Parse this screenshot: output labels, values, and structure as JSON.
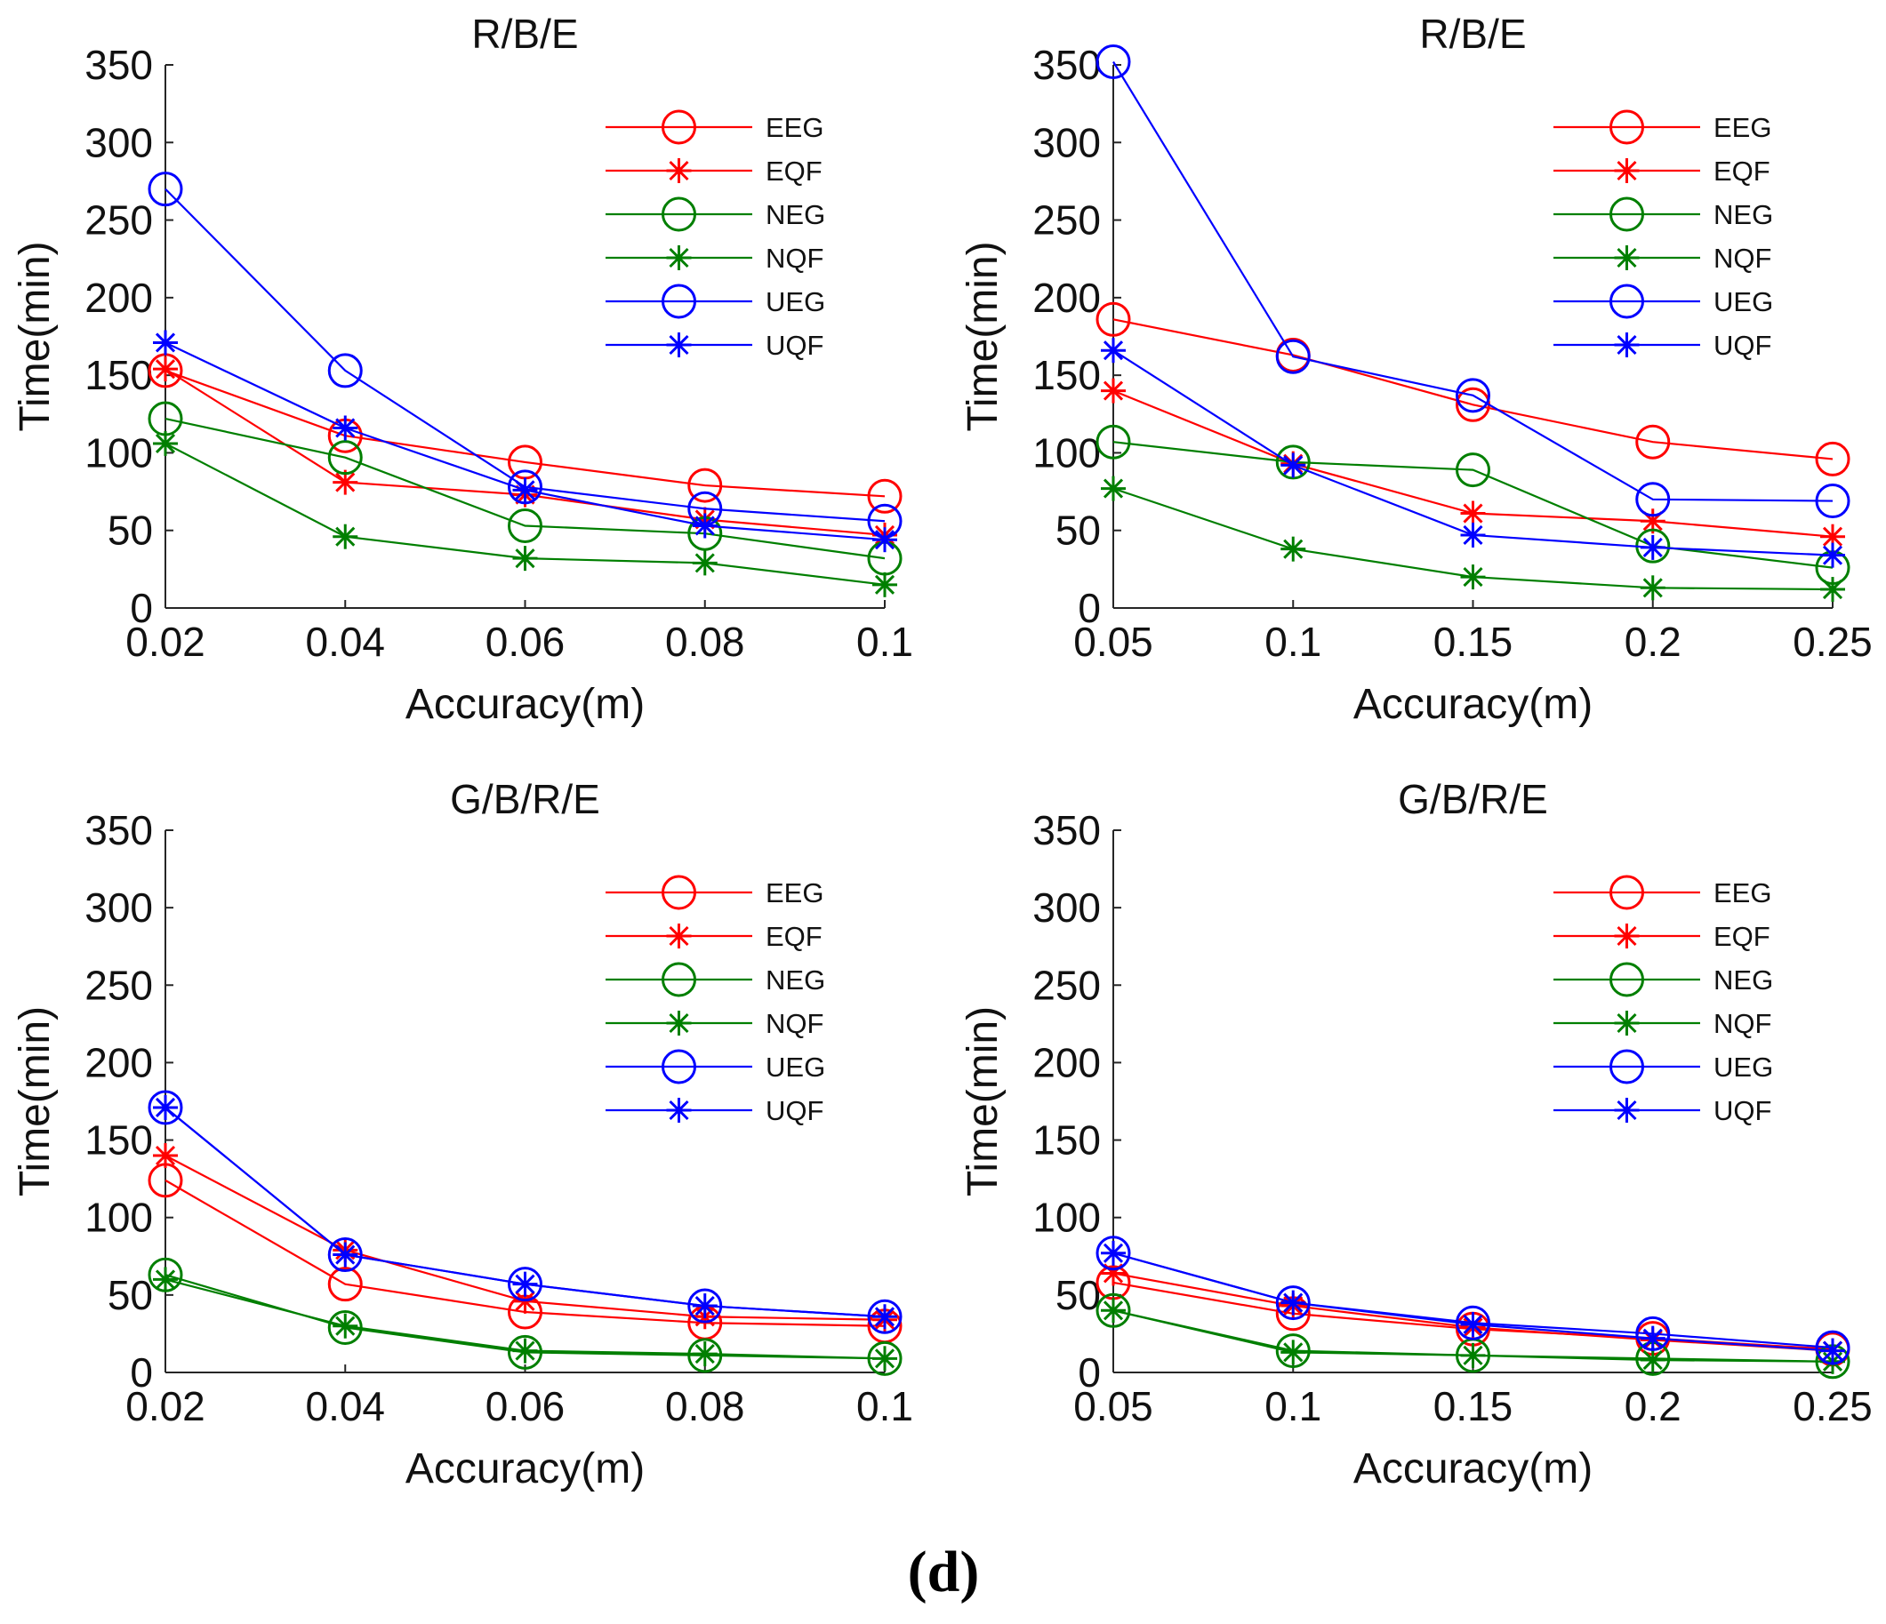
{
  "figure_caption": "(d)",
  "colors": {
    "EEG": "#ff0000",
    "EQF": "#ff0000",
    "NEG": "#007f00",
    "NQF": "#007f00",
    "UEG": "#0000ff",
    "UQF": "#0000ff"
  },
  "chart_data": [
    {
      "type": "line",
      "title": "R/B/E",
      "xlabel": "Accuracy(m)",
      "ylabel": "Time(min)",
      "x": [
        0.02,
        0.04,
        0.06,
        0.08,
        0.1
      ],
      "x_tick_labels": [
        "0.02",
        "0.04",
        "0.06",
        "0.08",
        "0.1"
      ],
      "xlim": [
        0.02,
        0.1
      ],
      "ylim": [
        0,
        350
      ],
      "y_ticks": [
        0,
        50,
        100,
        150,
        200,
        250,
        300,
        350
      ],
      "y_tick_labels": [
        "0",
        "50",
        "100",
        "150",
        "200",
        "250",
        "300",
        "350"
      ],
      "legend_position": "top-right",
      "series": [
        {
          "name": "EEG",
          "marker": "circle",
          "values": [
            153,
            111,
            94,
            79,
            72
          ]
        },
        {
          "name": "EQF",
          "marker": "star",
          "values": [
            154,
            81,
            73,
            57,
            47
          ]
        },
        {
          "name": "NEG",
          "marker": "circle",
          "values": [
            122,
            97,
            53,
            48,
            32
          ]
        },
        {
          "name": "NQF",
          "marker": "star",
          "values": [
            106,
            46,
            32,
            29,
            15
          ]
        },
        {
          "name": "UEG",
          "marker": "circle",
          "values": [
            270,
            153,
            78,
            64,
            56
          ]
        },
        {
          "name": "UQF",
          "marker": "star",
          "values": [
            171,
            116,
            76,
            53,
            44
          ]
        }
      ]
    },
    {
      "type": "line",
      "title": "R/B/E",
      "xlabel": "Accuracy(m)",
      "ylabel": "Time(min)",
      "x": [
        0.05,
        0.1,
        0.15,
        0.2,
        0.25
      ],
      "x_tick_labels": [
        "0.05",
        "0.1",
        "0.15",
        "0.2",
        "0.25"
      ],
      "xlim": [
        0.05,
        0.25
      ],
      "ylim": [
        0,
        350
      ],
      "y_ticks": [
        0,
        50,
        100,
        150,
        200,
        250,
        300,
        350
      ],
      "y_tick_labels": [
        "0",
        "50",
        "100",
        "150",
        "200",
        "250",
        "300",
        "350"
      ],
      "legend_position": "top-right",
      "series": [
        {
          "name": "EEG",
          "marker": "circle",
          "values": [
            186,
            163,
            131,
            107,
            96
          ]
        },
        {
          "name": "EQF",
          "marker": "star",
          "values": [
            140,
            93,
            61,
            56,
            46
          ]
        },
        {
          "name": "NEG",
          "marker": "circle",
          "values": [
            107,
            94,
            89,
            40,
            26
          ]
        },
        {
          "name": "NQF",
          "marker": "star",
          "values": [
            77,
            38,
            20,
            13,
            12
          ]
        },
        {
          "name": "UEG",
          "marker": "circle",
          "values": [
            352,
            162,
            137,
            70,
            69
          ]
        },
        {
          "name": "UQF",
          "marker": "star",
          "values": [
            166,
            92,
            47,
            39,
            34
          ]
        }
      ]
    },
    {
      "type": "line",
      "title": "G/B/R/E",
      "xlabel": "Accuracy(m)",
      "ylabel": "Time(min)",
      "x": [
        0.02,
        0.04,
        0.06,
        0.08,
        0.1
      ],
      "x_tick_labels": [
        "0.02",
        "0.04",
        "0.06",
        "0.08",
        "0.1"
      ],
      "xlim": [
        0.02,
        0.1
      ],
      "ylim": [
        0,
        350
      ],
      "y_ticks": [
        0,
        50,
        100,
        150,
        200,
        250,
        300,
        350
      ],
      "y_tick_labels": [
        "0",
        "50",
        "100",
        "150",
        "200",
        "250",
        "300",
        "350"
      ],
      "legend_position": "top-right",
      "series": [
        {
          "name": "EEG",
          "marker": "circle",
          "values": [
            124,
            57,
            39,
            32,
            30
          ]
        },
        {
          "name": "EQF",
          "marker": "star",
          "values": [
            140,
            79,
            46,
            36,
            34
          ]
        },
        {
          "name": "NEG",
          "marker": "circle",
          "values": [
            63,
            29,
            13,
            11,
            9
          ]
        },
        {
          "name": "NQF",
          "marker": "star",
          "values": [
            60,
            30,
            14,
            12,
            9
          ]
        },
        {
          "name": "UEG",
          "marker": "circle",
          "values": [
            171,
            76,
            57,
            43,
            36
          ]
        },
        {
          "name": "UQF",
          "marker": "star",
          "values": [
            171,
            76,
            57,
            43,
            36
          ]
        }
      ]
    },
    {
      "type": "line",
      "title": "G/B/R/E",
      "xlabel": "Accuracy(m)",
      "ylabel": "Time(min)",
      "x": [
        0.05,
        0.1,
        0.15,
        0.2,
        0.25
      ],
      "x_tick_labels": [
        "0.05",
        "0.1",
        "0.15",
        "0.2",
        "0.25"
      ],
      "xlim": [
        0.05,
        0.25
      ],
      "ylim": [
        0,
        350
      ],
      "y_ticks": [
        0,
        50,
        100,
        150,
        200,
        250,
        300,
        350
      ],
      "y_tick_labels": [
        "0",
        "50",
        "100",
        "150",
        "200",
        "250",
        "300",
        "350"
      ],
      "legend_position": "top-right",
      "series": [
        {
          "name": "EEG",
          "marker": "circle",
          "values": [
            58,
            38,
            28,
            22,
            15
          ]
        },
        {
          "name": "EQF",
          "marker": "star",
          "values": [
            64,
            43,
            29,
            21,
            14
          ]
        },
        {
          "name": "NEG",
          "marker": "circle",
          "values": [
            40,
            14,
            11,
            9,
            7
          ]
        },
        {
          "name": "NQF",
          "marker": "star",
          "values": [
            40,
            13,
            11,
            8,
            7
          ]
        },
        {
          "name": "UEG",
          "marker": "circle",
          "values": [
            77,
            45,
            32,
            25,
            16
          ]
        },
        {
          "name": "UQF",
          "marker": "star",
          "values": [
            77,
            45,
            31,
            22,
            14
          ]
        }
      ]
    }
  ]
}
